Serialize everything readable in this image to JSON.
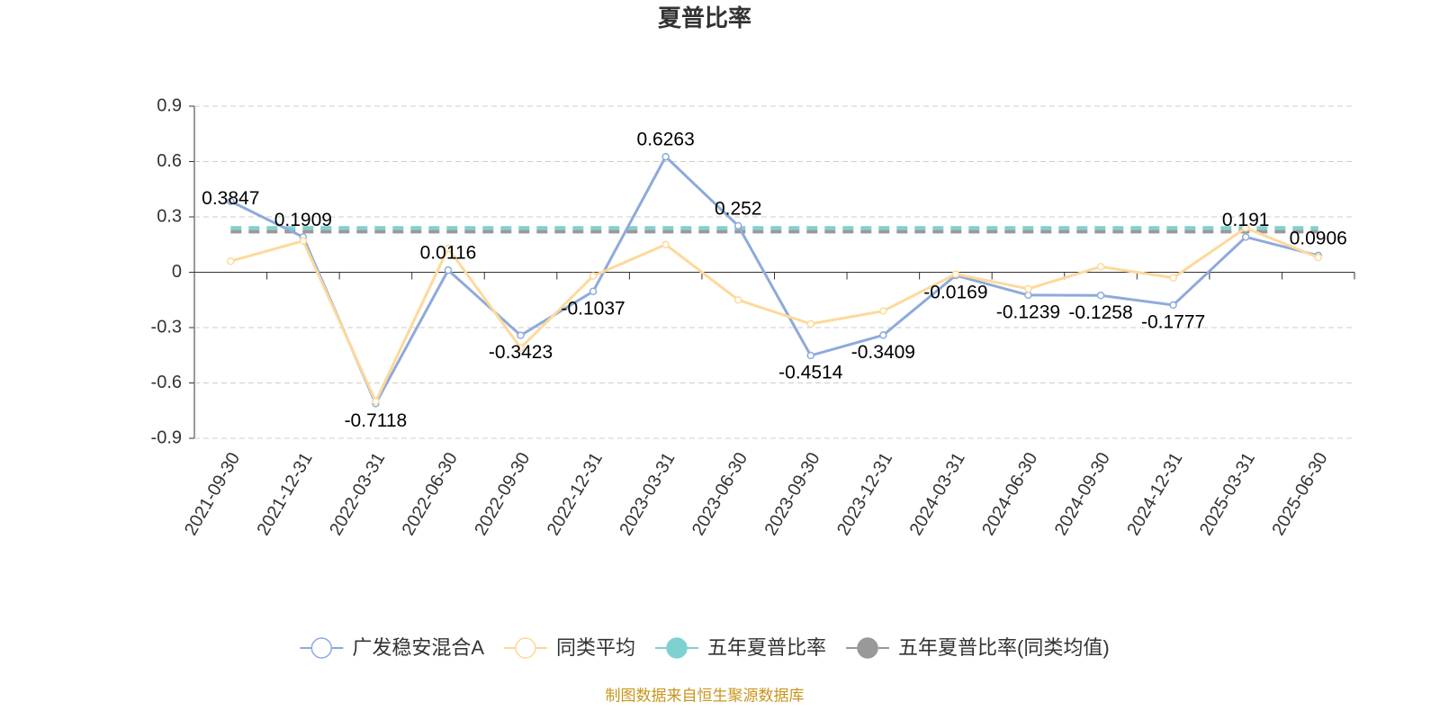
{
  "chart_data": {
    "type": "line",
    "title": "夏普比率",
    "categories": [
      "2021-09-30",
      "2021-12-31",
      "2022-03-31",
      "2022-06-30",
      "2022-09-30",
      "2022-12-31",
      "2023-03-31",
      "2023-06-30",
      "2023-09-30",
      "2023-12-31",
      "2024-03-31",
      "2024-06-30",
      "2024-09-30",
      "2024-12-31",
      "2025-03-31",
      "2025-06-30"
    ],
    "series": [
      {
        "name": "广发稳安混合A",
        "color": "#8eaadb",
        "values": [
          0.3847,
          0.1909,
          -0.7118,
          0.0116,
          -0.3423,
          -0.1037,
          0.6263,
          0.252,
          -0.4514,
          -0.3409,
          -0.0169,
          -0.1239,
          -0.1258,
          -0.1777,
          0.191,
          0.0906
        ],
        "show_labels": true
      },
      {
        "name": "同类平均",
        "color": "#fdd99b",
        "values": [
          0.06,
          0.17,
          -0.7,
          0.13,
          -0.41,
          -0.02,
          0.15,
          -0.15,
          -0.28,
          -0.21,
          -0.01,
          -0.09,
          0.03,
          -0.03,
          0.24,
          0.08
        ],
        "show_labels": false
      }
    ],
    "reference_lines": [
      {
        "name": "五年夏普比率",
        "color": "#7fd1d1",
        "value": 0.24
      },
      {
        "name": "五年夏普比率(同类均值)",
        "color": "#999999",
        "value": 0.22
      }
    ],
    "ylim": [
      -0.9,
      0.9
    ],
    "yticks": [
      -0.9,
      -0.6,
      -0.3,
      0,
      0.3,
      0.6,
      0.9
    ],
    "grid": true,
    "legend": "bottom",
    "source": "制图数据来自恒生聚源数据库"
  }
}
